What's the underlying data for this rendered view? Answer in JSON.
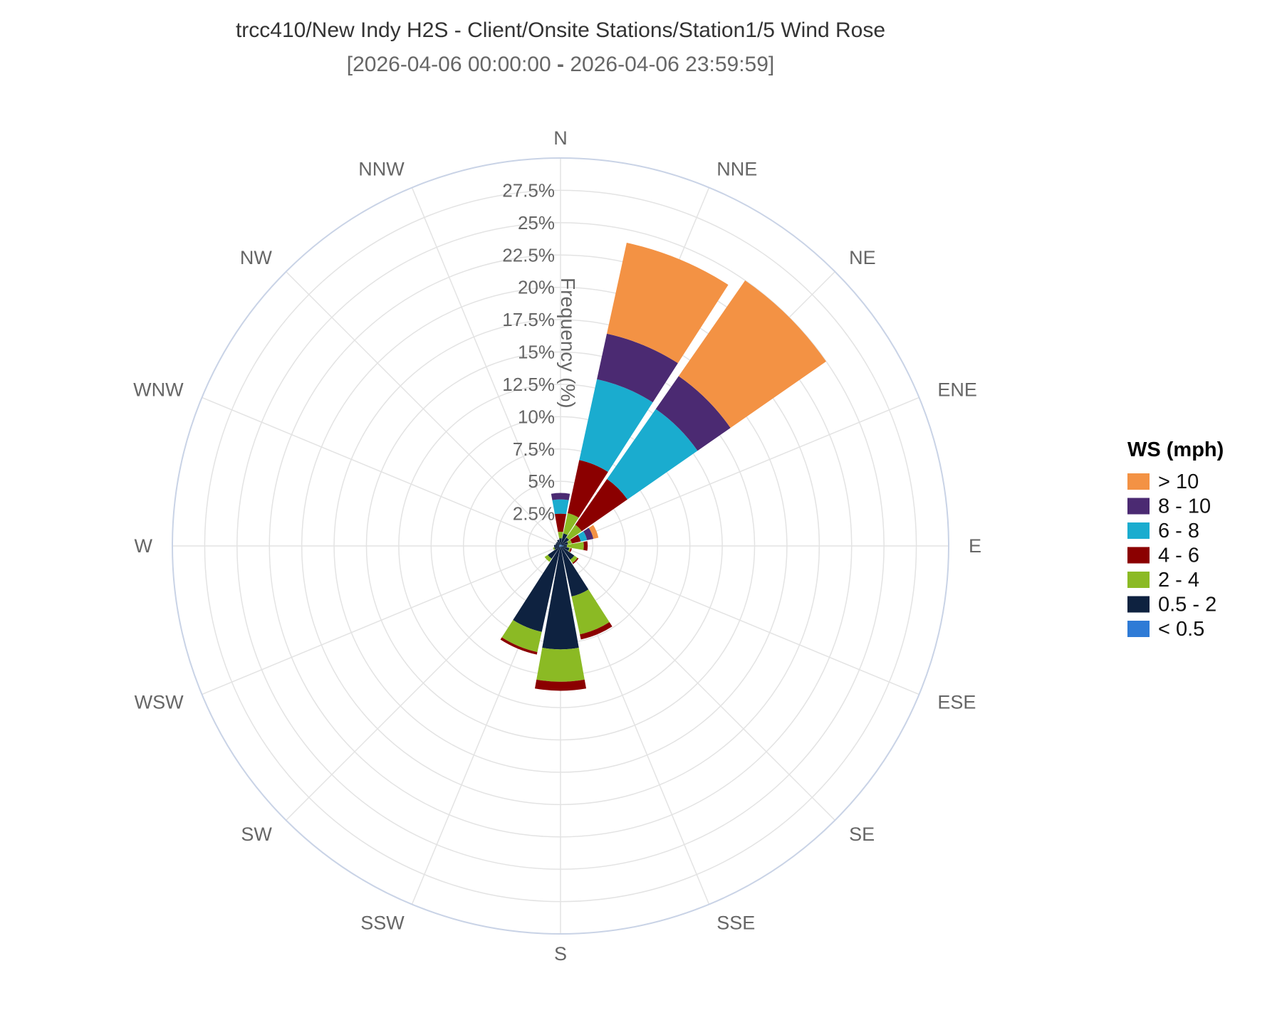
{
  "chart_data": {
    "type": "wind-rose",
    "title": "trcc410/New Indy H2S - Client/Onsite Stations/Station1/5 Wind Rose",
    "subtitle_start": "2026-04-06 00:00:00",
    "subtitle_sep": "-",
    "subtitle_end": "2026-04-06 23:59:59",
    "radial_axis_title": "Frequency (%)",
    "radial_max": 30,
    "radial_ticks": [
      2.5,
      5,
      7.5,
      10,
      12.5,
      15,
      17.5,
      20,
      22.5,
      25,
      27.5
    ],
    "radial_tick_labels": [
      "2.5%",
      "5%",
      "7.5%",
      "10%",
      "12.5%",
      "15%",
      "17.5%",
      "20%",
      "22.5%",
      "25%",
      "27.5%"
    ],
    "directions": [
      "N",
      "NNE",
      "NE",
      "ENE",
      "E",
      "ESE",
      "SE",
      "SSE",
      "S",
      "SSW",
      "SW",
      "WSW",
      "W",
      "WNW",
      "NW",
      "NNW"
    ],
    "direction_angles": [
      0,
      22.5,
      45,
      67.5,
      90,
      112.5,
      135,
      157.5,
      180,
      202.5,
      225,
      247.5,
      270,
      292.5,
      315,
      337.5
    ],
    "legend_title": "WS (mph)",
    "legend_position": "right",
    "series": [
      {
        "name": "< 0.5",
        "color": "#2e7bd6",
        "values": [
          0.1,
          0.1,
          0.1,
          0.1,
          0.2,
          0.1,
          0,
          0,
          0,
          0.1,
          0.1,
          0.1,
          0.1,
          0.1,
          0.1,
          0.1
        ]
      },
      {
        "name": "0.5 - 2",
        "color": "#0e2240",
        "values": [
          0.5,
          0.9,
          0.7,
          0.5,
          0.3,
          0.6,
          1.3,
          4.0,
          8.0,
          6.7,
          1.1,
          0.4,
          0.4,
          0.3,
          0.3,
          0.4
        ]
      },
      {
        "name": "2 - 4",
        "color": "#8bba24",
        "values": [
          0.5,
          1.6,
          1.2,
          0.3,
          1.3,
          0.1,
          0.3,
          3.0,
          2.5,
          1.6,
          0.3,
          0.1,
          0,
          0,
          0,
          0
        ]
      },
      {
        "name": "4 - 6",
        "color": "#8b0000",
        "values": [
          1.4,
          4.2,
          4.3,
          0.7,
          0.3,
          0.1,
          0.1,
          0.4,
          0.7,
          0.2,
          0,
          0,
          0,
          0,
          0,
          0
        ]
      },
      {
        "name": "6 - 8",
        "color": "#1aaccf",
        "values": [
          1.1,
          6.4,
          6.6,
          0.5,
          0,
          0,
          0,
          0,
          0,
          0,
          0,
          0,
          0,
          0,
          0,
          0
        ]
      },
      {
        "name": "8 - 10",
        "color": "#4b2a72",
        "values": [
          0.5,
          3.6,
          3.1,
          0.5,
          0,
          0,
          0,
          0,
          0,
          0,
          0,
          0,
          0,
          0,
          0,
          0
        ]
      },
      {
        "name": "> 10",
        "color": "#f39244",
        "values": [
          0,
          7.2,
          9.0,
          0.4,
          0,
          0,
          0,
          0,
          0,
          0,
          0,
          0,
          0,
          0,
          0,
          0
        ]
      }
    ],
    "legend_order": [
      "> 10",
      "8 - 10",
      "6 - 8",
      "4 - 6",
      "2 - 4",
      "0.5 - 2",
      "< 0.5"
    ],
    "grid": true
  }
}
